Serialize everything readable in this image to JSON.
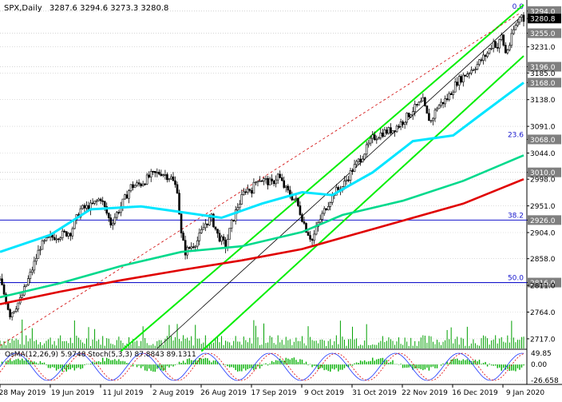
{
  "header": {
    "symbol": "SPX,Daily",
    "ohlc": "3287.6 3294.6 3273.3 3280.8"
  },
  "colors": {
    "price_box": "#000000",
    "candles": "#000000",
    "ema_fast": "#00e5ff",
    "ema_mid": "#00d98c",
    "ema_slow": "#e00000",
    "channel": "#00ee00",
    "trend_inner": "#000000",
    "trend_dashed": "#d00000",
    "level_line": "#1515cc",
    "grid": "#c8c8c8",
    "level_box": "#7f7f7f"
  },
  "indicator": {
    "label": "OsMA(12,26,9) 5.9748  Stoch(5,3,3) 87.8843 89.1311",
    "axis_labels": [
      "49.85",
      "0.00",
      "-26.658"
    ]
  },
  "chart_data": {
    "type": "candlestick",
    "title": "SPX,Daily",
    "y_axis": {
      "range": [
        2700,
        3305
      ],
      "tick_labels": [
        "3294.0",
        "3280.8",
        "3255.0",
        "3231.0",
        "3196.0",
        "3185.0",
        "3168.0",
        "3138.0",
        "3091.0",
        "3068.0",
        "3044.0",
        "3010.0",
        "2998.0",
        "2951.0",
        "2926.0",
        "2904.0",
        "2858.0",
        "2816.0",
        "2811.0",
        "2764.0",
        "2717.0"
      ],
      "boxed_levels": [
        "3294.0",
        "3280.8",
        "3255.0",
        "3196.0",
        "3168.0",
        "3068.0",
        "3010.0",
        "2926.0",
        "2816.0"
      ]
    },
    "x_axis": {
      "tick_labels": [
        "28 May 2019",
        "19 Jun 2019",
        "11 Jul 2019",
        "2 Aug 2019",
        "26 Aug 2019",
        "17 Sep 2019",
        "9 Oct 2019",
        "31 Oct 2019",
        "22 Nov 2019",
        "16 Dec 2019",
        "9 Jan 2020"
      ]
    },
    "fib_levels": [
      {
        "label": "0.0",
        "value": 3294.0
      },
      {
        "label": "23.6",
        "value": 3068.0
      },
      {
        "label": "38.2",
        "value": 2926.0
      },
      {
        "label": "50.0",
        "value": 2816.0
      }
    ],
    "close_path": [
      [
        0,
        2820
      ],
      [
        5,
        2760
      ],
      [
        10,
        2785
      ],
      [
        15,
        2830
      ],
      [
        20,
        2880
      ],
      [
        25,
        2895
      ],
      [
        30,
        2900
      ],
      [
        35,
        2905
      ],
      [
        40,
        2945
      ],
      [
        45,
        2950
      ],
      [
        50,
        2965
      ],
      [
        55,
        2920
      ],
      [
        60,
        2950
      ],
      [
        65,
        2985
      ],
      [
        70,
        2990
      ],
      [
        75,
        3005
      ],
      [
        80,
        3010
      ],
      [
        85,
        3000
      ],
      [
        88,
        2980
      ],
      [
        90,
        2900
      ],
      [
        92,
        2870
      ],
      [
        95,
        2880
      ],
      [
        98,
        2890
      ],
      [
        102,
        2920
      ],
      [
        105,
        2930
      ],
      [
        108,
        2900
      ],
      [
        112,
        2880
      ],
      [
        115,
        2920
      ],
      [
        118,
        2950
      ],
      [
        122,
        2980
      ],
      [
        125,
        2980
      ],
      [
        128,
        3000
      ],
      [
        132,
        2995
      ],
      [
        135,
        2990
      ],
      [
        138,
        3005
      ],
      [
        141,
        2985
      ],
      [
        144,
        2970
      ],
      [
        147,
        2960
      ],
      [
        150,
        2930
      ],
      [
        152,
        2910
      ],
      [
        155,
        2890
      ],
      [
        158,
        2920
      ],
      [
        162,
        2950
      ],
      [
        166,
        2975
      ],
      [
        170,
        2985
      ],
      [
        175,
        3015
      ],
      [
        180,
        3040
      ],
      [
        185,
        3070
      ],
      [
        190,
        3080
      ],
      [
        195,
        3085
      ],
      [
        200,
        3100
      ],
      [
        205,
        3120
      ],
      [
        210,
        3135
      ],
      [
        212,
        3110
      ],
      [
        214,
        3100
      ],
      [
        217,
        3125
      ],
      [
        222,
        3140
      ],
      [
        227,
        3170
      ],
      [
        232,
        3185
      ],
      [
        237,
        3200
      ],
      [
        242,
        3220
      ],
      [
        245,
        3240
      ],
      [
        247,
        3230
      ],
      [
        249,
        3250
      ],
      [
        251,
        3220
      ],
      [
        253,
        3235
      ],
      [
        255,
        3260
      ],
      [
        257,
        3275
      ],
      [
        259,
        3290
      ],
      [
        260,
        3281
      ]
    ],
    "close_estimated": true,
    "series": [
      {
        "name": "ema_fast",
        "values": [
          [
            0,
            2870
          ],
          [
            25,
            2900
          ],
          [
            45,
            2945
          ],
          [
            70,
            2950
          ],
          [
            90,
            2940
          ],
          [
            110,
            2930
          ],
          [
            130,
            2955
          ],
          [
            150,
            2975
          ],
          [
            165,
            2970
          ],
          [
            185,
            3010
          ],
          [
            205,
            3065
          ],
          [
            225,
            3075
          ],
          [
            240,
            3115
          ],
          [
            260,
            3168
          ]
        ]
      },
      {
        "name": "ema_mid",
        "values": [
          [
            0,
            2790
          ],
          [
            30,
            2815
          ],
          [
            60,
            2845
          ],
          [
            90,
            2870
          ],
          [
            120,
            2880
          ],
          [
            150,
            2905
          ],
          [
            170,
            2935
          ],
          [
            200,
            2960
          ],
          [
            230,
            2995
          ],
          [
            260,
            3040
          ]
        ]
      },
      {
        "name": "ema_slow",
        "values": [
          [
            0,
            2778
          ],
          [
            30,
            2800
          ],
          [
            60,
            2820
          ],
          [
            90,
            2838
          ],
          [
            120,
            2855
          ],
          [
            150,
            2875
          ],
          [
            170,
            2895
          ],
          [
            200,
            2925
          ],
          [
            230,
            2955
          ],
          [
            260,
            2998
          ]
        ]
      }
    ],
    "channel_lines": [
      {
        "name": "upper",
        "from": [
          60,
          2695
        ],
        "to": [
          260,
          3305
        ]
      },
      {
        "name": "lower",
        "from": [
          100,
          2695
        ],
        "to": [
          260,
          3215
        ]
      }
    ],
    "trend_lines": [
      {
        "name": "inner",
        "from": [
          78,
          2700
        ],
        "to": [
          258,
          3282
        ]
      },
      {
        "name": "dashed",
        "from": [
          0,
          2705
        ],
        "to": [
          258,
          3290
        ]
      }
    ],
    "horizontal_levels": [
      {
        "label": "3294.0",
        "value": 3294.0
      },
      {
        "label": "3255.0",
        "value": 3255.0
      },
      {
        "label": "3196.0",
        "value": 3196.0
      },
      {
        "label": "3010.0",
        "value": 3010.0
      },
      {
        "label": "2926.0",
        "value": 2926.0
      },
      {
        "label": "2816.0",
        "value": 2816.0
      }
    ]
  }
}
